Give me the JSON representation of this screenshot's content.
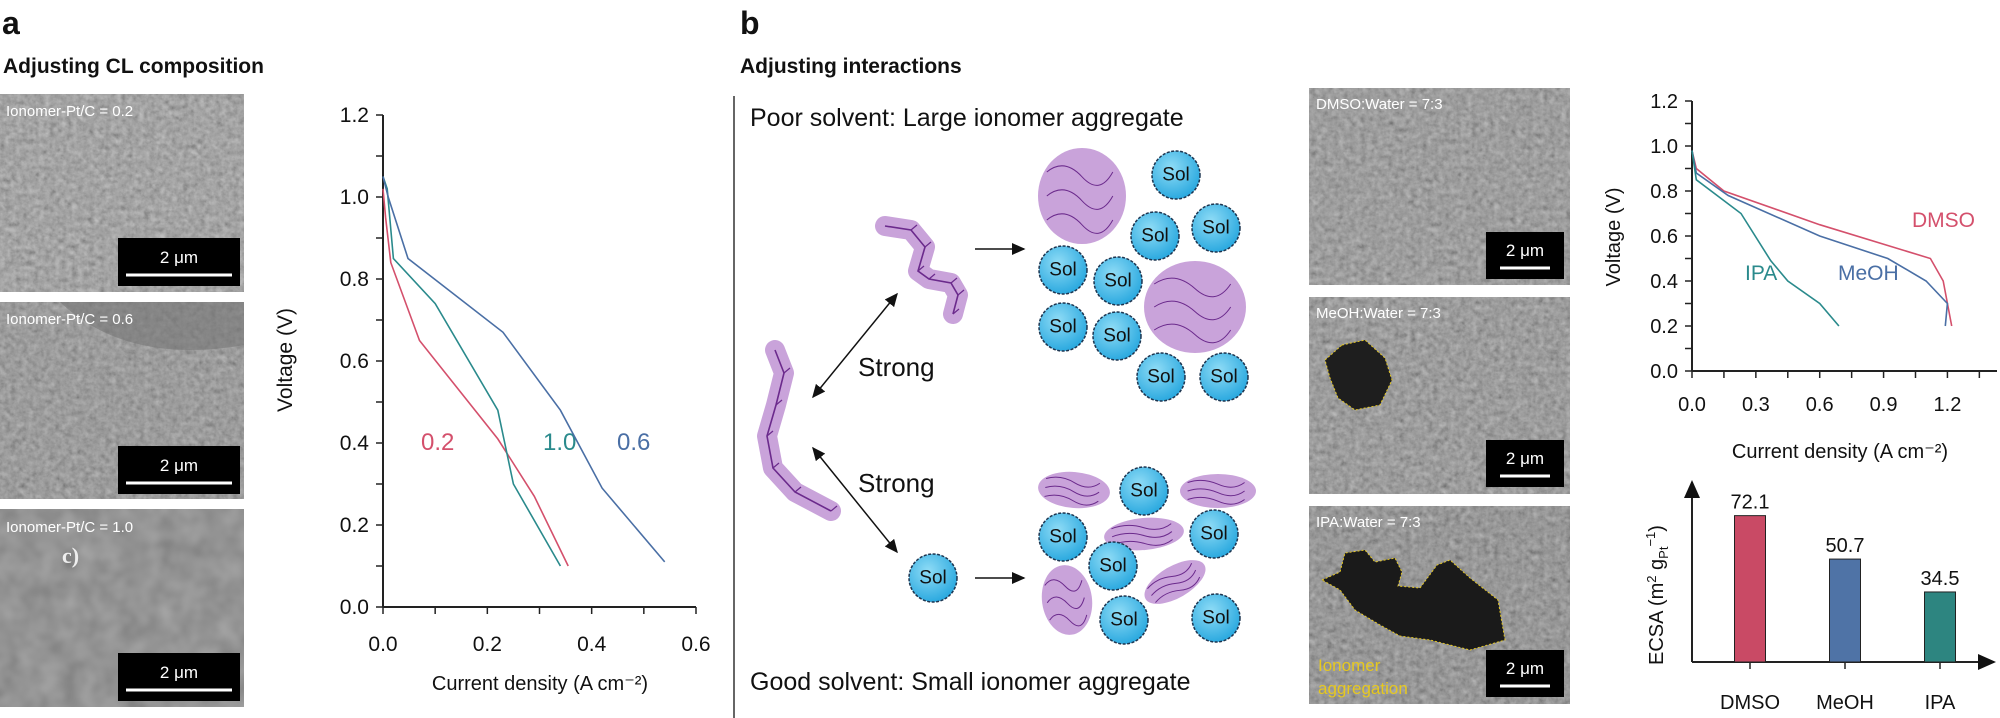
{
  "panel_a": {
    "letter": "a",
    "heading": "Adjusting CL composition",
    "sem_images": [
      {
        "label": "Ionomer-Pt/C = 0.2",
        "scale_bar": "2 μm"
      },
      {
        "label": "Ionomer-Pt/C = 0.6",
        "scale_bar": "2 μm"
      },
      {
        "label": "Ionomer-Pt/C = 1.0",
        "scale_bar": "2 μm",
        "overlay_mark": "c)"
      }
    ]
  },
  "panel_b": {
    "letter": "b",
    "heading": "Adjusting interactions",
    "poor_solvent": "Poor solvent: Large ionomer aggregate",
    "good_solvent": "Good solvent: Small ionomer aggregate",
    "interaction_label_top": "Strong",
    "interaction_label_bottom": "Strong",
    "sol_label": "Sol",
    "colors": {
      "ionomer": "#c9a3da",
      "ionomer_chain": "#6b2a8c",
      "sol": "#3db4e6"
    },
    "sem_images": [
      {
        "label": "DMSO:Water = 7:3",
        "scale_bar": "2 μm"
      },
      {
        "label": "MeOH:Water = 7:3",
        "scale_bar": "2 μm"
      },
      {
        "label": "IPA:Water = 7:3",
        "scale_bar": "2 μm",
        "annotation_line1": "Ionomer",
        "annotation_line2": "aggregation",
        "annotation_color": "#e6c820"
      }
    ]
  },
  "chart_data": [
    {
      "type": "line",
      "xlabel": "Current density (A cm⁻²)",
      "ylabel": "Voltage (V)",
      "xlim": [
        0,
        0.6
      ],
      "ylim": [
        0,
        1.2
      ],
      "xticks": [
        "0.0",
        "0.2",
        "0.4",
        "0.6"
      ],
      "yticks": [
        "0.0",
        "0.2",
        "0.4",
        "0.6",
        "0.8",
        "1.0",
        "1.2"
      ],
      "grid": false,
      "series": [
        {
          "name": "0.2",
          "color": "#d4506c",
          "x": [
            0,
            0.005,
            0.015,
            0.07,
            0.22,
            0.29,
            0.355
          ],
          "y": [
            1.02,
            0.95,
            0.84,
            0.65,
            0.41,
            0.27,
            0.1
          ]
        },
        {
          "name": "1.0",
          "color": "#2a8a8c",
          "x": [
            0,
            0.008,
            0.02,
            0.1,
            0.22,
            0.25,
            0.34
          ],
          "y": [
            1.05,
            1.02,
            0.85,
            0.74,
            0.48,
            0.3,
            0.1
          ]
        },
        {
          "name": "0.6",
          "color": "#4a6fa5",
          "x": [
            0,
            0.01,
            0.048,
            0.23,
            0.34,
            0.42,
            0.54
          ],
          "y": [
            1.05,
            1.0,
            0.85,
            0.67,
            0.48,
            0.29,
            0.11
          ]
        }
      ]
    },
    {
      "type": "line",
      "xlabel": "Current density (A cm⁻²)",
      "ylabel": "Voltage (V)",
      "xlim": [
        0,
        1.4
      ],
      "ylim": [
        0,
        1.2
      ],
      "xticks": [
        "0.0",
        "0.3",
        "0.6",
        "0.9",
        "1.2"
      ],
      "yticks": [
        "0.0",
        "0.2",
        "0.4",
        "0.6",
        "0.8",
        "1.0",
        "1.2"
      ],
      "grid": false,
      "series": [
        {
          "name": "DMSO",
          "color": "#d4506c",
          "x": [
            0,
            0.02,
            0.15,
            0.6,
            1.12,
            1.18,
            1.22
          ],
          "y": [
            0.98,
            0.9,
            0.8,
            0.65,
            0.5,
            0.4,
            0.2
          ]
        },
        {
          "name": "MeOH",
          "color": "#4a6fa5",
          "x": [
            0,
            0.02,
            0.17,
            0.6,
            0.92,
            1.1,
            1.2,
            1.19
          ],
          "y": [
            0.98,
            0.88,
            0.78,
            0.6,
            0.5,
            0.4,
            0.3,
            0.2
          ]
        },
        {
          "name": "IPA",
          "color": "#2a8a8c",
          "x": [
            0,
            0.02,
            0.23,
            0.37,
            0.45,
            0.6,
            0.69
          ],
          "y": [
            0.98,
            0.85,
            0.7,
            0.49,
            0.4,
            0.3,
            0.2
          ]
        }
      ]
    },
    {
      "type": "bar",
      "ylabel_parts": {
        "main": "ECSA (m",
        "sup1": "2",
        "g": " g",
        "sub": "Pt",
        "sup2": "−1",
        "close": ")"
      },
      "categories": [
        "DMSO",
        "MeOH",
        "IPA"
      ],
      "values": [
        72.1,
        50.7,
        34.5
      ],
      "value_labels": [
        "72.1",
        "50.7",
        "34.5"
      ],
      "colors": [
        "#c94a65",
        "#4f73a6",
        "#2d8580"
      ]
    }
  ]
}
